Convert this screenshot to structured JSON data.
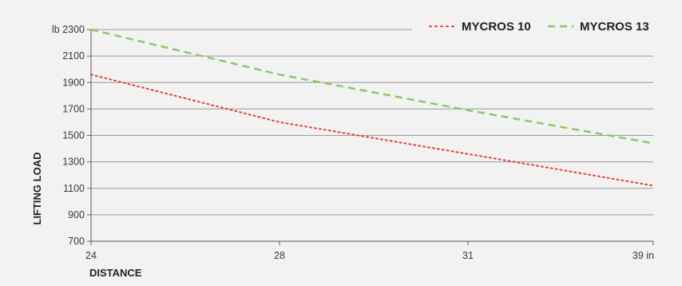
{
  "chart_data": {
    "type": "line",
    "xlabel": "DISTANCE",
    "ylabel": "LIFTING LOAD",
    "y_unit": "lb",
    "x_unit": "in",
    "x_ticks": [
      {
        "value": 24,
        "label": "24"
      },
      {
        "value": 28,
        "label": "28"
      },
      {
        "value": 31,
        "label": "31"
      },
      {
        "value": 39,
        "label": "39 in"
      }
    ],
    "y_ticks": [
      {
        "value": 2300,
        "label": "lb 2300"
      },
      {
        "value": 2100,
        "label": "2100"
      },
      {
        "value": 1900,
        "label": "1900"
      },
      {
        "value": 1700,
        "label": "1700"
      },
      {
        "value": 1500,
        "label": "1500"
      },
      {
        "value": 1300,
        "label": "1300"
      },
      {
        "value": 1100,
        "label": "1100"
      },
      {
        "value": 900,
        "label": "900"
      },
      {
        "value": 700,
        "label": "700"
      }
    ],
    "ylim": [
      700,
      2300
    ],
    "grid": true,
    "legend_position": "top-right",
    "series": [
      {
        "name": "MYCROS 10",
        "color": "#e0423a",
        "style": "dotted",
        "points": [
          {
            "x": 24,
            "y": 1960
          },
          {
            "x": 28,
            "y": 1600
          },
          {
            "x": 31,
            "y": 1360
          },
          {
            "x": 39,
            "y": 1120
          }
        ]
      },
      {
        "name": "MYCROS 13",
        "color": "#8bc86a",
        "style": "dashed",
        "points": [
          {
            "x": 24,
            "y": 2300
          },
          {
            "x": 28,
            "y": 1960
          },
          {
            "x": 31,
            "y": 1690
          },
          {
            "x": 39,
            "y": 1440
          }
        ]
      }
    ]
  }
}
